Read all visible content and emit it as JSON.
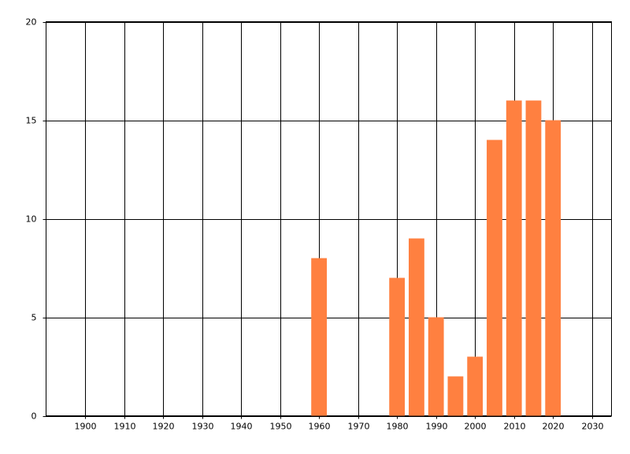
{
  "chart_data": {
    "type": "bar",
    "x": [
      1960,
      1980,
      1985,
      1990,
      1995,
      2000,
      2005,
      2010,
      2015,
      2020
    ],
    "values": [
      8,
      7,
      9,
      5,
      2,
      3,
      14,
      16,
      16,
      15
    ],
    "color": "#ff8040",
    "xlim": [
      1890,
      2035
    ],
    "xticks": [
      1900,
      1910,
      1920,
      1930,
      1940,
      1950,
      1960,
      1970,
      1980,
      1990,
      2000,
      2010,
      2020,
      2030
    ],
    "ylim": [
      0,
      20
    ],
    "yticks": [
      0,
      5,
      10,
      15,
      20
    ],
    "grid": true
  }
}
